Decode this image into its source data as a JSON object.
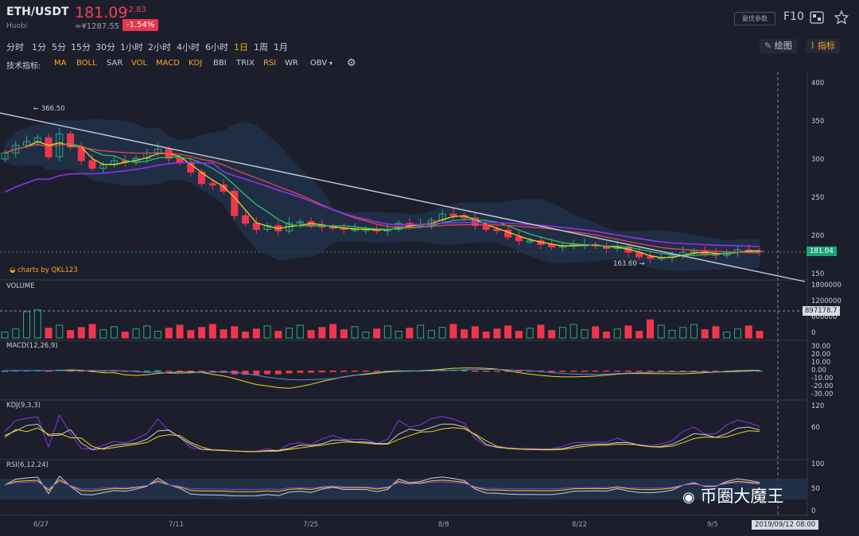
{
  "header": {
    "pair": "ETH/USDT",
    "exchange": "Huobi",
    "price": "181.09",
    "change": "-2.83",
    "cny": "≈¥1287.55",
    "change_pct": "-1.54%",
    "options_button": "最优参数",
    "f10": "F10"
  },
  "timeframes": [
    "分时",
    "1分",
    "5分",
    "15分",
    "30分",
    "1小时",
    "2小时",
    "4小时",
    "6小时",
    "1日",
    "1周",
    "1月"
  ],
  "active_timeframe": "1日",
  "tools": {
    "draw": "绘图",
    "indicator": "指标"
  },
  "indicator_label": "技术指标:",
  "indicators": [
    "MA",
    "BOLL",
    "SAR",
    "VOL",
    "MACD",
    "KDJ",
    "BBI",
    "TRIX",
    "RSI",
    "WR",
    "OBV"
  ],
  "icons": [
    "gear-icon",
    "grid-icon",
    "star-icon",
    "pen-icon",
    "chart-icon",
    "caret-icon"
  ],
  "colors": {
    "up": "#2aa888",
    "down": "#f0364f",
    "ma5": "#f2d21b",
    "ma10": "#2bc06a",
    "ma30": "#e8454f",
    "ma60": "#9132e8",
    "trend": "#c9ccd6",
    "price_tag": "#1ea47a"
  },
  "watermark_brand": "charts by QKL123",
  "watermark": "币圈大魔王",
  "price_tag": "181.04",
  "volume_tag": "897178.7",
  "crosshair_date": "2019/09/12 08:00",
  "chart_data": {
    "type": "candlestick",
    "dates": [
      "6/27",
      "7/11",
      "7/25",
      "8/8",
      "8/22",
      "9/5"
    ],
    "price_axis": {
      "ticks": [
        150,
        200,
        250,
        300,
        350,
        400
      ],
      "ylim": [
        140,
        410
      ]
    },
    "high_annotation": "366.50",
    "low_annotation": "163.60",
    "closes": [
      310,
      320,
      325,
      330,
      305,
      335,
      318,
      300,
      290,
      295,
      300,
      298,
      303,
      310,
      315,
      303,
      298,
      285,
      270,
      268,
      260,
      228,
      218,
      210,
      215,
      208,
      218,
      220,
      215,
      213,
      212,
      210,
      210,
      210,
      208,
      210,
      218,
      215,
      216,
      222,
      230,
      228,
      225,
      215,
      210,
      209,
      200,
      195,
      195,
      190,
      187,
      188,
      190,
      190,
      188,
      185,
      187,
      180,
      174,
      172,
      173,
      175,
      180,
      182,
      178,
      176,
      180,
      183,
      182,
      181
    ],
    "volume": {
      "title": "VOLUME",
      "ticks": [
        "1800000",
        "1200000",
        "600000",
        "0"
      ]
    },
    "macd": {
      "title": "MACD(12,26,9)",
      "ticks": [
        "30.00",
        "20.00",
        "10.00",
        "0.00",
        "-10.00",
        "-20.00",
        "-30.00"
      ]
    },
    "kdj": {
      "title": "KDJ(9,3,3)",
      "ticks": [
        "120",
        "60"
      ]
    },
    "rsi": {
      "title": "RSI(6,12,24)",
      "ticks": [
        "100",
        "50",
        "0"
      ]
    }
  }
}
